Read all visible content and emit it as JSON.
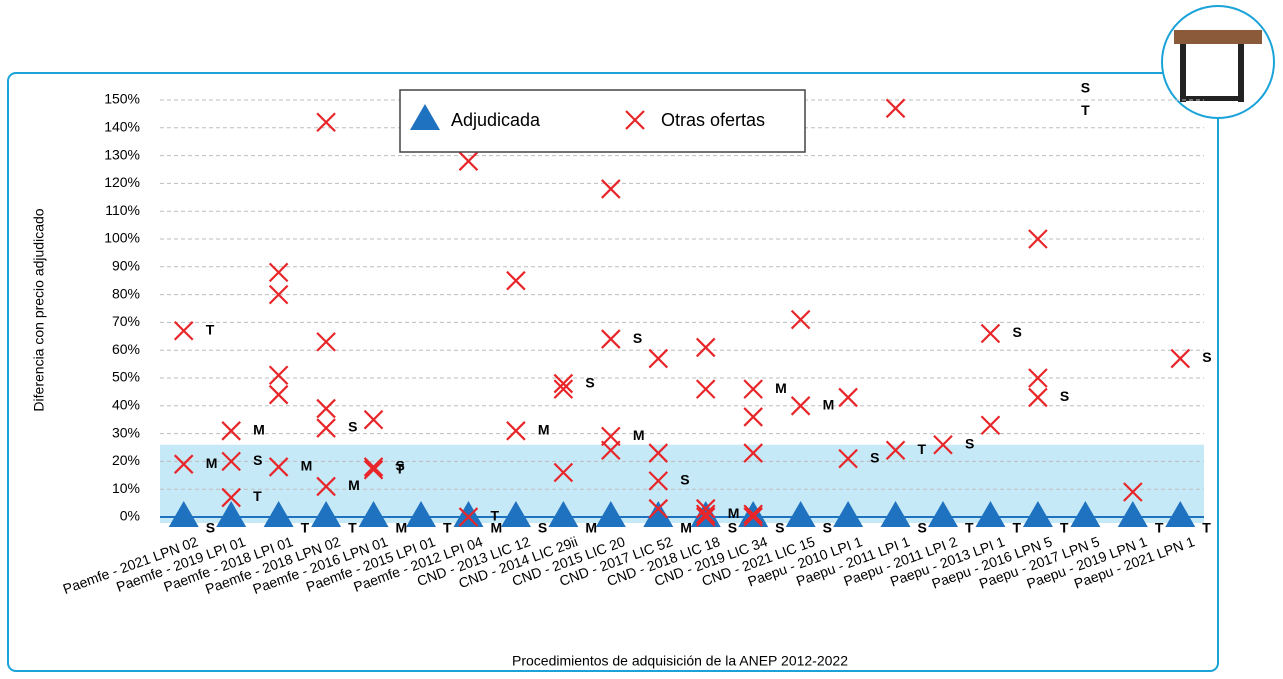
{
  "chart_data": {
    "type": "scatter",
    "ylabel": "Diferencia con precio adjudicado",
    "xlabel": "Procedimientos de adquisición de la ANEP 2012-2022",
    "categories": [
      "Paemfe - 2021 LPN 02",
      "Paemfe - 2019 LPI 01",
      "Paemfe - 2018 LPI 01",
      "Paemfe - 2018 LPN 02",
      "Paemfe - 2016 LPN 01",
      "Paemfe - 2015 LPI 01",
      "Paemfe - 2012 LPI 04",
      "CND - 2013 LIC 12",
      "CND - 2014 LIC 29ii",
      "CND - 2015 LIC 20",
      "CND - 2017 LIC 52",
      "CND - 2018 LIC 18",
      "CND - 2019 LIC 34",
      "CND - 2021 LIC 15",
      "Paepu - 2010 LPI 1",
      "Paepu - 2011 LPI 1",
      "Paepu - 2011 LPI 2",
      "Paepu - 2013 LPI 1",
      "Paepu - 2016 LPN 5",
      "Paepu - 2017 LPN 5",
      "Paepu - 2019 LPN 1",
      "Paepu - 2021 LPN 1"
    ],
    "ylim": [
      0,
      150
    ],
    "yticks": [
      {
        "value": 0,
        "label": "0%"
      },
      {
        "value": 10,
        "label": "10%"
      },
      {
        "value": 20,
        "label": "20%"
      },
      {
        "value": 30,
        "label": "30%"
      },
      {
        "value": 40,
        "label": "40%"
      },
      {
        "value": 50,
        "label": "50%"
      },
      {
        "value": 60,
        "label": "60%"
      },
      {
        "value": 70,
        "label": "70%"
      },
      {
        "value": 80,
        "label": "80%"
      },
      {
        "value": 90,
        "label": "90%"
      },
      {
        "value": 100,
        "label": "100%"
      },
      {
        "value": 110,
        "label": "110%"
      },
      {
        "value": 120,
        "label": "120%"
      },
      {
        "value": 130,
        "label": "130%"
      },
      {
        "value": 140,
        "label": "140%"
      },
      {
        "value": 150,
        "label": "150%"
      }
    ],
    "grid": true,
    "highlight_range": [
      0,
      26
    ],
    "highlight_color": "#c6e9f7",
    "legend": "top",
    "series": [
      {
        "name": "Adjudicada",
        "marker": "triangle",
        "color": "#1f72c0",
        "x": [
          "Paemfe - 2021 LPN 02",
          "Paemfe - 2019 LPI 01",
          "Paemfe - 2018 LPI 01",
          "Paemfe - 2018 LPN 02",
          "Paemfe - 2016 LPN 01",
          "Paemfe - 2015 LPI 01",
          "Paemfe - 2012 LPI 04",
          "CND - 2013 LIC 12",
          "CND - 2014 LIC 29ii",
          "CND - 2015 LIC 20",
          "CND - 2017 LIC 52",
          "CND - 2018 LIC 18",
          "CND - 2019 LIC 34",
          "CND - 2021 LIC 15",
          "Paepu - 2010 LPI 1",
          "Paepu - 2011 LPI 1",
          "Paepu - 2011 LPI 2",
          "Paepu - 2013 LPI 1",
          "Paepu - 2016 LPN 5",
          "Paepu - 2017 LPN 5",
          "Paepu - 2019 LPN 1",
          "Paepu - 2021 LPN 1"
        ],
        "values": [
          0,
          0,
          0,
          0,
          0,
          0,
          0,
          0,
          0,
          0,
          0,
          0,
          0,
          0,
          0,
          0,
          0,
          0,
          0,
          0,
          0,
          0
        ],
        "point_labels": [
          "S",
          null,
          "T",
          "T",
          "M",
          "T",
          "M",
          "S",
          "M",
          null,
          "M",
          "S",
          "S",
          "S",
          null,
          "S",
          "T",
          "T",
          "T",
          null,
          "T",
          "T"
        ]
      },
      {
        "name": "Otras ofertas",
        "marker": "cross",
        "color": "#e8262a",
        "x": [
          "Paemfe - 2021 LPN 02",
          "Paemfe - 2021 LPN 02",
          "Paemfe - 2019 LPI 01",
          "Paemfe - 2019 LPI 01",
          "Paemfe - 2019 LPI 01",
          "Paemfe - 2018 LPI 01",
          "Paemfe - 2018 LPI 01",
          "Paemfe - 2018 LPI 01",
          "Paemfe - 2018 LPI 01",
          "Paemfe - 2018 LPI 01",
          "Paemfe - 2018 LPN 02",
          "Paemfe - 2018 LPN 02",
          "Paemfe - 2018 LPN 02",
          "Paemfe - 2018 LPN 02",
          "Paemfe - 2018 LPN 02",
          "Paemfe - 2016 LPN 01",
          "Paemfe - 2016 LPN 01",
          "Paemfe - 2016 LPN 01",
          "Paemfe - 2012 LPI 04",
          "Paemfe - 2012 LPI 04",
          "CND - 2013 LIC 12",
          "CND - 2013 LIC 12",
          "CND - 2014 LIC 29ii",
          "CND - 2014 LIC 29ii",
          "CND - 2014 LIC 29ii",
          "CND - 2015 LIC 20",
          "CND - 2015 LIC 20",
          "CND - 2015 LIC 20",
          "CND - 2015 LIC 20",
          "CND - 2017 LIC 52",
          "CND - 2017 LIC 52",
          "CND - 2017 LIC 52",
          "CND - 2017 LIC 52",
          "CND - 2018 LIC 18",
          "CND - 2018 LIC 18",
          "CND - 2018 LIC 18",
          "CND - 2018 LIC 18",
          "CND - 2018 LIC 18",
          "CND - 2019 LIC 34",
          "CND - 2019 LIC 34",
          "CND - 2019 LIC 34",
          "CND - 2019 LIC 34",
          "CND - 2019 LIC 34",
          "CND - 2021 LIC 15",
          "CND - 2021 LIC 15",
          "Paepu - 2010 LPI 1",
          "Paepu - 2010 LPI 1",
          "Paepu - 2011 LPI 1",
          "Paepu - 2011 LPI 1",
          "Paepu - 2011 LPI 2",
          "Paepu - 2013 LPI 1",
          "Paepu - 2013 LPI 1",
          "Paepu - 2016 LPN 5",
          "Paepu - 2016 LPN 5",
          "Paepu - 2016 LPN 5",
          "Paepu - 2019 LPN 1",
          "Paepu - 2021 LPN 1"
        ],
        "values": [
          67,
          19,
          31,
          20,
          7,
          88,
          80,
          51,
          44,
          18,
          142,
          63,
          39,
          32,
          11,
          35,
          18,
          17,
          128,
          0,
          85,
          31,
          48,
          46,
          16,
          118,
          64,
          29,
          24,
          57,
          23,
          13,
          3,
          61,
          46,
          3,
          1,
          0,
          46,
          36,
          23,
          1,
          0,
          71,
          40,
          43,
          21,
          147,
          24,
          26,
          66,
          33,
          100,
          50,
          43,
          9,
          57
        ],
        "point_labels": [
          "T",
          "M",
          "M",
          "S",
          "T",
          null,
          null,
          null,
          null,
          "M",
          null,
          null,
          null,
          "S",
          "M",
          null,
          "S",
          "T",
          null,
          "T",
          null,
          "M",
          "S",
          null,
          null,
          null,
          "S",
          "M",
          null,
          null,
          null,
          "S",
          null,
          null,
          null,
          null,
          "M",
          null,
          "M",
          null,
          null,
          null,
          null,
          null,
          "M",
          null,
          "S",
          null,
          "T",
          "S",
          "S",
          null,
          null,
          null,
          "S",
          null,
          "S"
        ]
      }
    ],
    "annotations": [
      {
        "text": "S",
        "x": "Paepu - 2017 LPN 5",
        "y": 154
      },
      {
        "text": "T",
        "x": "Paepu - 2017 LPN 5",
        "y": 146
      }
    ]
  }
}
